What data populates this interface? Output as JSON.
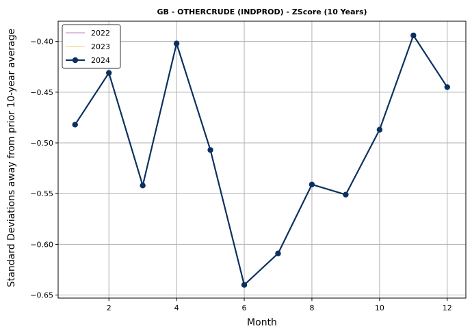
{
  "chart_data": {
    "type": "line",
    "title": "GB - OTHERCRUDE (INDPROD) - ZScore (10 Years)",
    "xlabel": "Month",
    "ylabel": "Standard Deviations away from prior 10-year average",
    "xlim": [
      0.5,
      12.55
    ],
    "ylim": [
      -0.653,
      -0.38
    ],
    "xticks": [
      2,
      4,
      6,
      8,
      10,
      12
    ],
    "yticks": [
      -0.4,
      -0.45,
      -0.5,
      -0.55,
      -0.6,
      -0.65
    ],
    "ytick_labels": [
      "−0.40",
      "−0.45",
      "−0.50",
      "−0.55",
      "−0.60",
      "−0.65"
    ],
    "grid": true,
    "legend_position": "top-left",
    "series": [
      {
        "name": "2022",
        "color": "#d8a6d8",
        "marker": false,
        "values": []
      },
      {
        "name": "2023",
        "color": "#efe0a0",
        "marker": false,
        "values": []
      },
      {
        "name": "2024",
        "color": "#0b3060",
        "marker": true,
        "x": [
          1,
          2,
          3,
          4,
          5,
          6,
          7,
          8,
          9,
          10,
          11,
          12
        ],
        "values": [
          -0.482,
          -0.431,
          -0.542,
          -0.402,
          -0.507,
          -0.64,
          -0.609,
          -0.541,
          -0.551,
          -0.487,
          -0.394,
          -0.445
        ]
      }
    ]
  }
}
